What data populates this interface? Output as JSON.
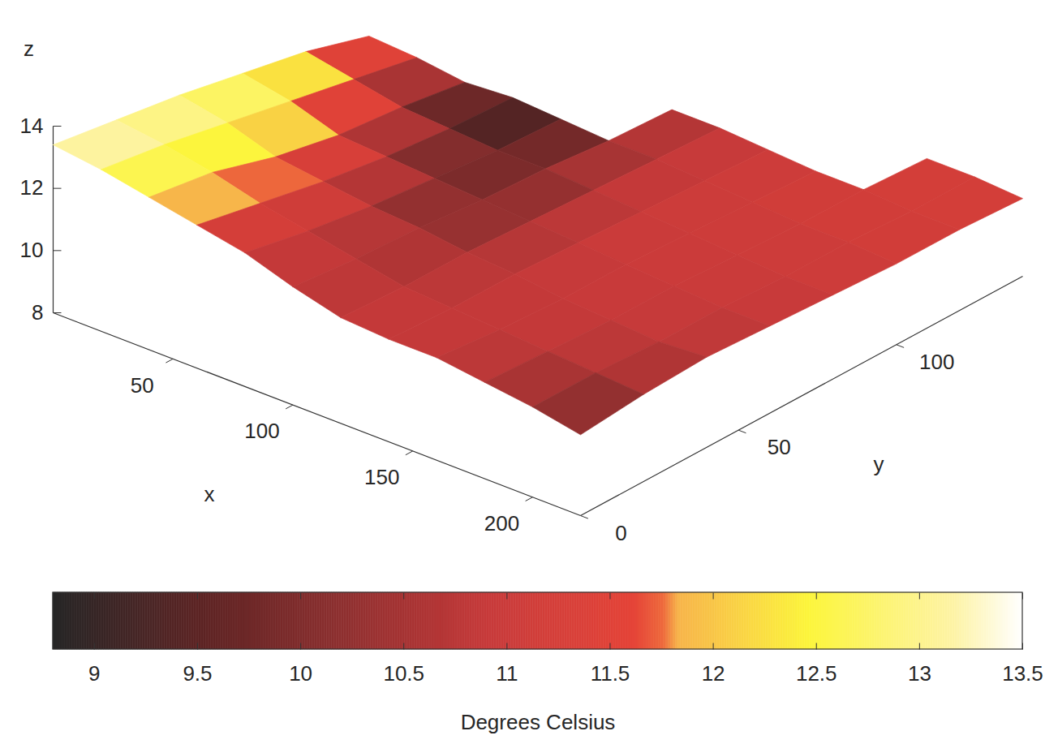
{
  "chart_data": {
    "type": "surface",
    "x_label": "x",
    "y_label": "y",
    "z_label": "z",
    "x": [
      0,
      20,
      40,
      60,
      80,
      100,
      120,
      140,
      160,
      180,
      200,
      220
    ],
    "y": [
      0,
      20,
      40,
      60,
      80,
      100,
      120,
      140
    ],
    "z": [
      [
        13.4,
        13.1,
        12.8,
        12.4,
        12.0,
        11.4,
        null,
        null
      ],
      [
        13.2,
        12.9,
        12.5,
        12.1,
        11.7,
        11.3,
        null,
        null
      ],
      [
        12.9,
        12.6,
        12.0,
        11.6,
        11.4,
        11.1,
        null,
        null
      ],
      [
        12.6,
        12.2,
        11.8,
        11.5,
        11.3,
        11.2,
        null,
        null
      ],
      [
        12.3,
        11.9,
        11.6,
        11.4,
        11.2,
        11.1,
        null,
        null
      ],
      [
        11.8,
        11.6,
        11.5,
        11.3,
        11.2,
        11.0,
        10.9,
        null
      ],
      [
        11.4,
        11.3,
        11.3,
        11.2,
        11.1,
        11.0,
        10.9,
        null
      ],
      [
        11.3,
        11.2,
        11.2,
        11.1,
        11.0,
        10.9,
        10.8,
        null
      ],
      [
        11.3,
        11.1,
        11.0,
        11.0,
        10.9,
        10.8,
        10.7,
        null
      ],
      [
        11.1,
        11.0,
        10.9,
        10.9,
        10.8,
        10.7,
        10.7,
        10.6
      ],
      [
        10.9,
        10.9,
        10.8,
        10.8,
        10.7,
        10.7,
        10.6,
        10.6
      ],
      [
        10.6,
        10.8,
        10.9,
        10.8,
        10.7,
        10.6,
        10.6,
        10.5
      ]
    ],
    "temperature": [
      [
        13.4,
        13.2,
        13.0,
        12.8,
        12.3,
        11.6,
        null,
        null
      ],
      [
        13.0,
        12.9,
        12.7,
        12.4,
        11.6,
        10.4,
        null,
        null
      ],
      [
        12.2,
        12.3,
        12.0,
        11.4,
        10.6,
        9.6,
        null,
        null
      ],
      [
        11.4,
        11.5,
        11.2,
        10.6,
        9.8,
        9.0,
        null,
        null
      ],
      [
        11.0,
        11.0,
        10.7,
        10.2,
        9.6,
        9.2,
        null,
        null
      ],
      [
        10.8,
        10.7,
        10.4,
        9.8,
        10.2,
        10.4,
        10.6,
        null
      ],
      [
        10.9,
        10.8,
        10.6,
        10.5,
        10.7,
        10.8,
        10.9,
        null
      ],
      [
        10.9,
        10.9,
        10.8,
        10.9,
        11.0,
        11.0,
        11.0,
        null
      ],
      [
        10.8,
        10.9,
        10.9,
        11.0,
        11.0,
        11.1,
        11.1,
        null
      ],
      [
        10.6,
        10.8,
        10.9,
        11.0,
        11.0,
        11.1,
        11.2,
        11.2
      ],
      [
        10.2,
        10.6,
        10.8,
        10.9,
        11.0,
        11.1,
        11.2,
        11.2
      ],
      [
        9.9,
        10.4,
        10.7,
        10.9,
        11.0,
        11.1,
        11.2,
        11.2
      ]
    ],
    "xlim": [
      0,
      220
    ],
    "ylim": [
      0,
      140
    ],
    "zlim": [
      8,
      14
    ],
    "xticks": [
      50,
      100,
      150,
      200
    ],
    "yticks": [
      0,
      50,
      100
    ],
    "zticks": [
      8,
      10,
      12,
      14
    ],
    "colorbar": {
      "label": "Degrees Celsius",
      "range": [
        8.8,
        13.5
      ],
      "ticks": [
        9,
        9.5,
        10,
        10.5,
        11,
        11.5,
        12,
        12.5,
        13,
        13.5
      ]
    }
  }
}
